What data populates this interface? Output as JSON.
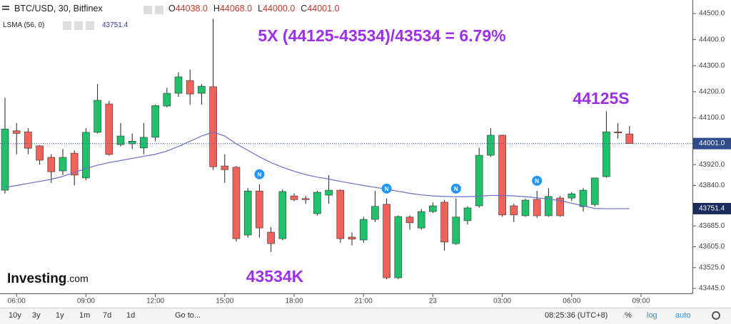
{
  "chart_data": {
    "type": "candlestick",
    "title": "BTC/USD, 30, Bitfinex",
    "header_ohlc": [
      {
        "key": "O",
        "text": "44038.0"
      },
      {
        "key": "H",
        "text": "44068.0"
      },
      {
        "key": "L",
        "text": "44000.0"
      },
      {
        "key": "C",
        "text": "44001.0"
      }
    ],
    "indicator": {
      "name": "LSMA (56, 0)",
      "text": "43751.4"
    },
    "categories": [
      null,
      "06:00",
      null,
      null,
      null,
      null,
      null,
      "09:00",
      null,
      null,
      null,
      null,
      null,
      "12:00",
      null,
      null,
      null,
      null,
      null,
      "15:00",
      null,
      null,
      null,
      null,
      null,
      "18:00",
      null,
      null,
      null,
      null,
      null,
      "21:00",
      null,
      null,
      null,
      null,
      null,
      "23",
      null,
      null,
      null,
      null,
      null,
      "03:00",
      null,
      null,
      null,
      null,
      null,
      "06:00",
      null,
      null,
      null,
      null,
      null,
      "09:00"
    ],
    "open": [
      43822,
      44050,
      44046,
      43992,
      43948,
      43896,
      43964,
      43869,
      44044,
      44153,
      43997,
      44000,
      43984,
      44025,
      44145,
      44194,
      44243,
      44194,
      44219,
      43915,
      43910,
      43650,
      43819,
      43661,
      43636,
      43800,
      43790,
      43732,
      43803,
      43822,
      43642,
      43631,
      43710,
      43768,
      43486,
      43719,
      43677,
      43740,
      43776,
      43617,
      43705,
      43762,
      43956,
      44033,
      43762,
      43724,
      43787,
      43724,
      43792,
      43792,
      43759,
      43767,
      43874,
      44046,
      44038,
      null
    ],
    "high": [
      44177,
      44080,
      44060,
      43995,
      43960,
      43980,
      43975,
      44060,
      44230,
      44165,
      44080,
      44040,
      44080,
      44150,
      44215,
      44275,
      44285,
      44230,
      44480,
      43960,
      43915,
      43830,
      43845,
      43680,
      43825,
      43810,
      43800,
      43820,
      43880,
      43825,
      43660,
      43720,
      43820,
      43790,
      43725,
      43725,
      43750,
      43775,
      43785,
      43790,
      43760,
      43985,
      44060,
      44035,
      43770,
      43790,
      43820,
      43830,
      43800,
      43815,
      43830,
      43870,
      44125,
      44080,
      44068,
      null
    ],
    "low": [
      43809,
      43960,
      43960,
      43920,
      43850,
      43880,
      43840,
      43860,
      44040,
      43955,
      43990,
      43980,
      43960,
      44010,
      44140,
      44180,
      44150,
      44150,
      43900,
      43850,
      43625,
      43640,
      43640,
      43585,
      43630,
      43780,
      43770,
      43725,
      43770,
      43620,
      43610,
      43620,
      43700,
      43480,
      43480,
      43670,
      43670,
      43735,
      43590,
      43612,
      43690,
      43755,
      43950,
      43720,
      43700,
      43720,
      43715,
      43720,
      43720,
      43780,
      43740,
      43760,
      43870,
      44020,
      44000,
      null
    ],
    "close": [
      44057,
      44040,
      43983,
      43937,
      43893,
      43948,
      43880,
      44044,
      44167,
      43959,
      44030,
      44010,
      44025,
      44147,
      44194,
      44257,
      44191,
      44221,
      43912,
      43901,
      43636,
      43819,
      43677,
      43617,
      43817,
      43786,
      43787,
      43814,
      43822,
      43636,
      43634,
      43710,
      43760,
      43486,
      43721,
      43697,
      43740,
      43762,
      43623,
      43719,
      43754,
      43956,
      44033,
      43727,
      43727,
      43784,
      43724,
      43798,
      43724,
      43808,
      43822,
      43869,
      44046,
      44043,
      44001,
      null
    ],
    "up_color": "#21c06a",
    "down_color": "#f2625b",
    "lsma": {
      "color": "#6c6cc8",
      "values": [
        43833,
        43840,
        43848,
        43856,
        43864,
        43875,
        43890,
        43905,
        43918,
        43928,
        43936,
        43944,
        43952,
        43960,
        43972,
        43990,
        44010,
        44030,
        44045,
        44030,
        44000,
        43975,
        43950,
        43928,
        43910,
        43895,
        43882,
        43872,
        43865,
        43856,
        43848,
        43840,
        43833,
        43826,
        43818,
        43810,
        43804,
        43800,
        43798,
        43797,
        43797,
        43799,
        43802,
        43802,
        43800,
        43797,
        43793,
        43788,
        43782,
        43772,
        43762,
        43752,
        43751,
        43751,
        43751.4,
        null
      ]
    },
    "last_price": {
      "value": 44001,
      "label": "44001.0"
    },
    "ylim": [
      43426,
      44552
    ],
    "yticks": [
      {
        "value": 44500,
        "label": "44500.0"
      },
      {
        "value": 44400,
        "label": "44400.0"
      },
      {
        "value": 44300,
        "label": "44300.0"
      },
      {
        "value": 44200,
        "label": "44200.0"
      },
      {
        "value": 44100,
        "label": "44100.0"
      },
      {
        "value": 43920,
        "label": "43920.0"
      },
      {
        "value": 43840,
        "label": "43840.0"
      },
      {
        "value": 43685,
        "label": "43685.0"
      },
      {
        "value": 43605,
        "label": "43605.0"
      },
      {
        "value": 43525,
        "label": "43525.0"
      },
      {
        "value": 43445,
        "label": "43445.0"
      }
    ],
    "markers": [
      {
        "label": "N",
        "at": 22
      },
      {
        "label": "N",
        "at": 33
      },
      {
        "label": "N",
        "at": 39
      },
      {
        "label": "N",
        "at": 46
      }
    ],
    "annotations": [
      "5X (44125-43534)/43534 = 6.79%",
      "44125S",
      "43534K"
    ],
    "logo": {
      "brand": "Investing",
      "suffix": ".com"
    }
  },
  "toolbar": {
    "ranges": [
      "10y",
      "3y",
      "1y",
      "1m",
      "7d",
      "1d"
    ],
    "goto": "Go to...",
    "clock": "08:25:36 (UTC+8)",
    "options": [
      "%",
      "log",
      "auto"
    ]
  }
}
